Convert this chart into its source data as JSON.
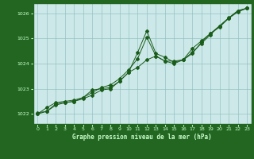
{
  "title": "Graphe pression niveau de la mer (hPa)",
  "plot_bg_color": "#cce8e8",
  "fig_bg_color": "#226622",
  "label_color": "#ccffcc",
  "line_color": "#1a5c1a",
  "ylim": [
    1021.6,
    1026.4
  ],
  "xlim": [
    -0.5,
    23.5
  ],
  "yticks": [
    1022,
    1023,
    1024,
    1025,
    1026
  ],
  "xticks": [
    0,
    1,
    2,
    3,
    4,
    5,
    6,
    7,
    8,
    9,
    10,
    11,
    12,
    13,
    14,
    15,
    16,
    17,
    18,
    19,
    20,
    21,
    22,
    23
  ],
  "s1_x": [
    0,
    1,
    2,
    3,
    4,
    5,
    6,
    7,
    8,
    9,
    10,
    11,
    12,
    13,
    14,
    15,
    16,
    17,
    18,
    19,
    20,
    21,
    22,
    23
  ],
  "s1_y": [
    1022.0,
    1022.25,
    1022.45,
    1022.5,
    1022.55,
    1022.65,
    1022.85,
    1023.05,
    1023.15,
    1023.4,
    1023.75,
    1024.2,
    1025.05,
    1024.3,
    1024.1,
    1024.1,
    1024.15,
    1024.4,
    1024.85,
    1025.2,
    1025.5,
    1025.82,
    1026.1,
    1026.2
  ],
  "s2_x": [
    0,
    1,
    2,
    3,
    4,
    5,
    6,
    7,
    8,
    9,
    10,
    11,
    12,
    13,
    14,
    15,
    16,
    17,
    18,
    19,
    20,
    21,
    22,
    23
  ],
  "s2_y": [
    1022.0,
    1022.1,
    1022.35,
    1022.45,
    1022.5,
    1022.6,
    1022.75,
    1022.95,
    1023.0,
    1023.3,
    1023.65,
    1023.85,
    1024.15,
    1024.3,
    1024.1,
    1024.0,
    1024.15,
    1024.45,
    1024.8,
    1025.15,
    1025.5,
    1025.8,
    1026.1,
    1026.2
  ],
  "s3_x": [
    0,
    1,
    2,
    3,
    4,
    5,
    6,
    7,
    8,
    9,
    10,
    11,
    12,
    13,
    14,
    15,
    16,
    17,
    18,
    19,
    20,
    21,
    22,
    23
  ],
  "s3_y": [
    1022.05,
    1022.1,
    1022.4,
    1022.45,
    1022.5,
    1022.65,
    1022.95,
    1023.0,
    1023.05,
    1023.3,
    1023.65,
    1024.45,
    1025.3,
    1024.4,
    1024.25,
    1024.05,
    1024.15,
    1024.6,
    1024.9,
    1025.2,
    1025.45,
    1025.8,
    1026.05,
    1026.2
  ]
}
